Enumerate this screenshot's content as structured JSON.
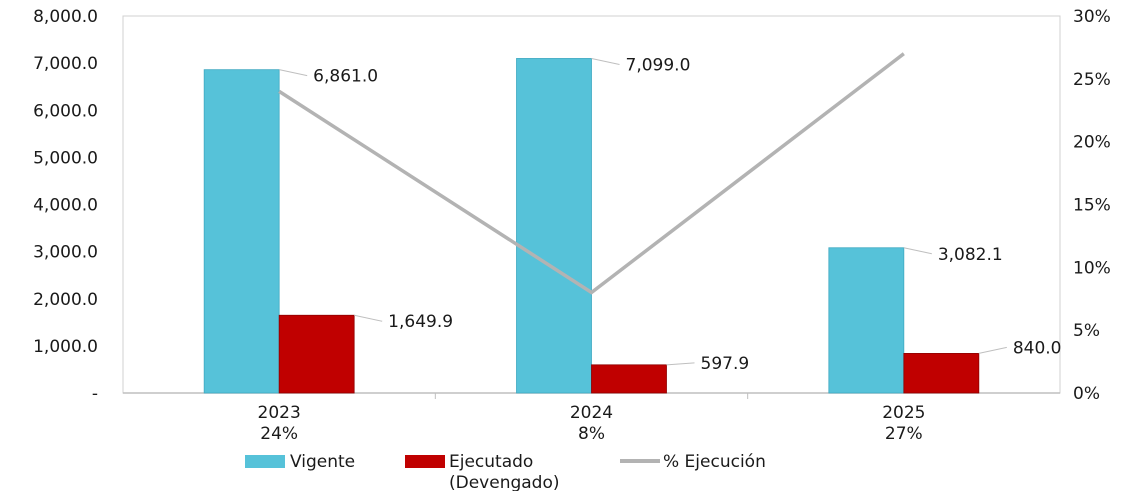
{
  "chart_data": {
    "type": "bar",
    "categories": [
      "2023",
      "2024",
      "2025"
    ],
    "category_sublabels": [
      "24%",
      "8%",
      "27%"
    ],
    "series": [
      {
        "name": "Vigente",
        "values": [
          6861.0,
          7099.0,
          3082.1
        ],
        "labels": [
          "6,861.0",
          "7,099.0",
          "3,082.1"
        ],
        "color": "#56c2d9"
      },
      {
        "name": "Ejecutado (Devengado)",
        "name_lines": [
          "Ejecutado",
          "(Devengado)"
        ],
        "values": [
          1649.9,
          597.9,
          840.0
        ],
        "labels": [
          "1,649.9",
          "597.9",
          "840.0"
        ],
        "color": "#c00000"
      },
      {
        "name": "% Ejecución",
        "type": "line",
        "axis": "right",
        "values": [
          24,
          8,
          27
        ],
        "color": "#b3b3b3"
      }
    ],
    "ylim": [
      0,
      8000
    ],
    "y_ticks": [
      0,
      1000,
      2000,
      3000,
      4000,
      5000,
      6000,
      7000,
      8000
    ],
    "y_tick_labels": [
      "-",
      "1,000.0",
      "2,000.0",
      "3,000.0",
      "4,000.0",
      "5,000.0",
      "6,000.0",
      "7,000.0",
      "8,000.0"
    ],
    "y2lim": [
      0,
      30
    ],
    "y2_ticks": [
      0,
      5,
      10,
      15,
      20,
      25,
      30
    ],
    "y2_tick_labels": [
      "0%",
      "5%",
      "10%",
      "15%",
      "20%",
      "25%",
      "30%"
    ],
    "legend_position": "bottom",
    "grid": false,
    "title": "",
    "xlabel": "",
    "ylabel": ""
  }
}
